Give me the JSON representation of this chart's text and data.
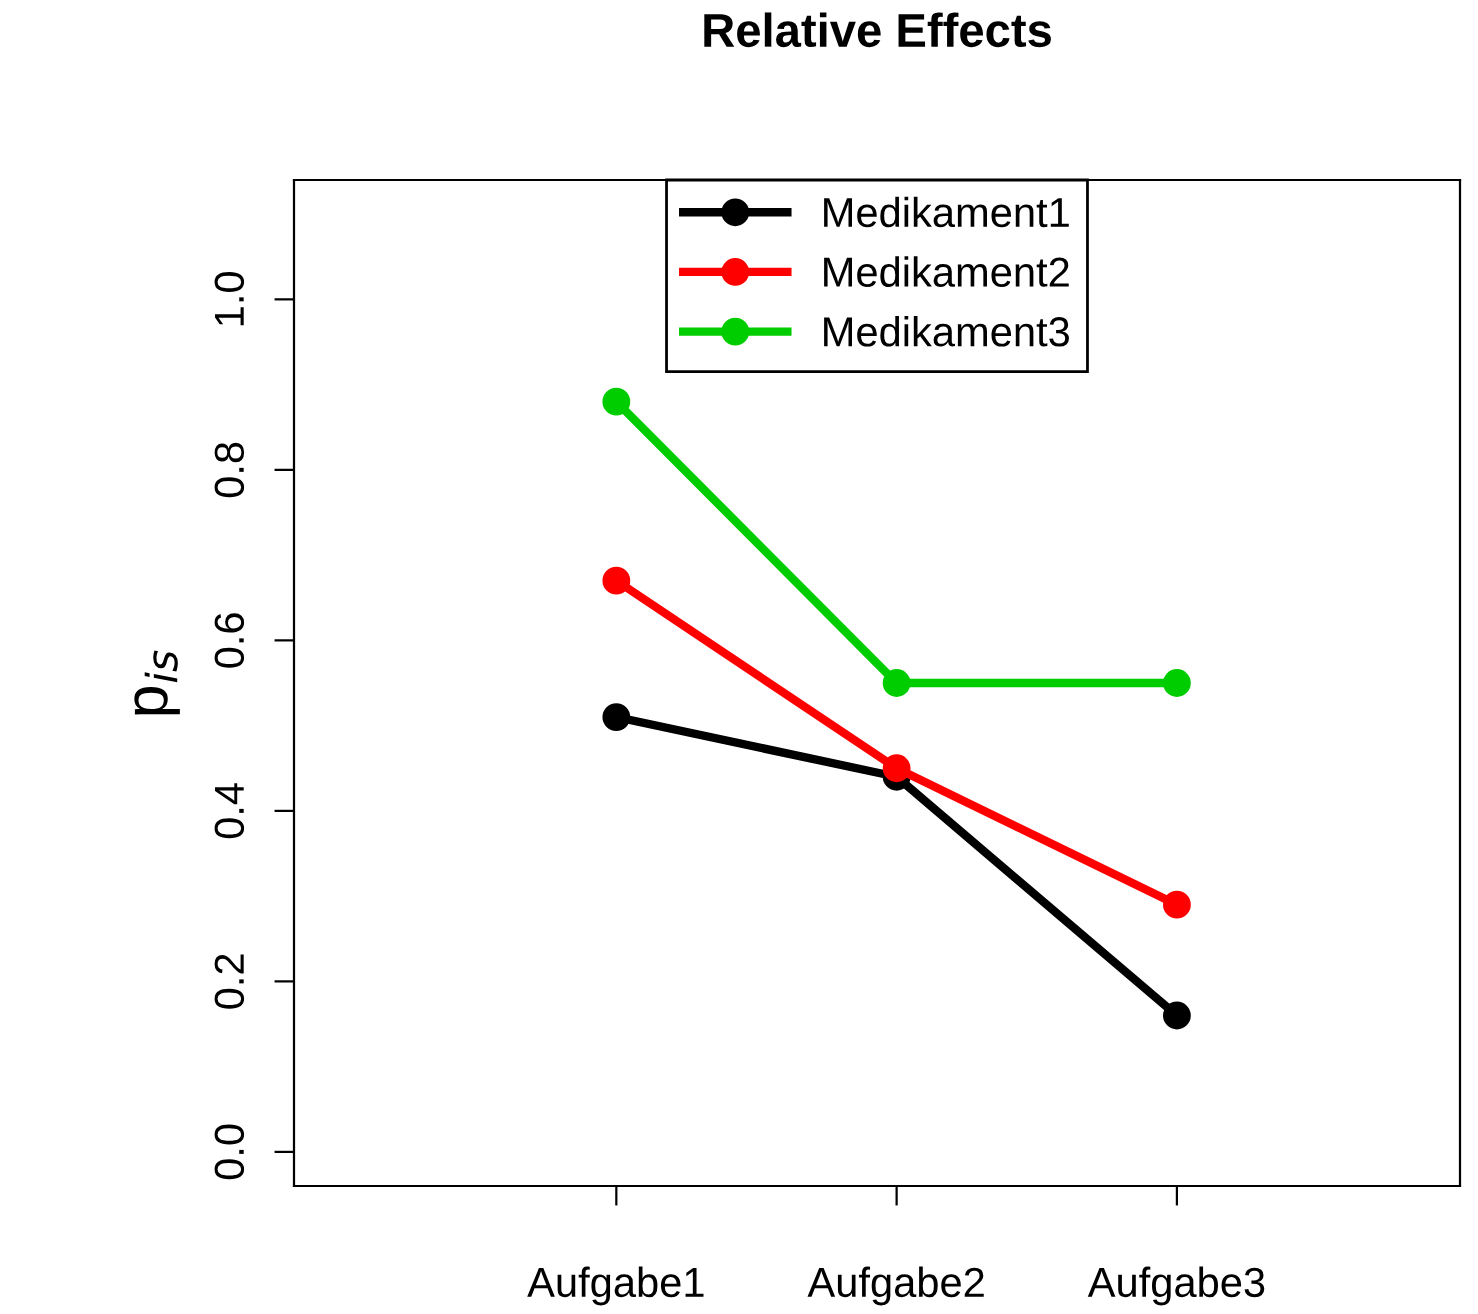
{
  "chart_data": {
    "type": "line",
    "title": "Relative Effects",
    "ylabel": "p$_{is}$",
    "categories": [
      "Aufgabe1",
      "Aufgabe2",
      "Aufgabe3"
    ],
    "series": [
      {
        "name": "Medikament1",
        "color": "#000000",
        "values": [
          0.51,
          0.44,
          0.16
        ]
      },
      {
        "name": "Medikament2",
        "color": "#ff0000",
        "values": [
          0.67,
          0.45,
          0.29
        ]
      },
      {
        "name": "Medikament3",
        "color": "#00cd00",
        "values": [
          0.88,
          0.55,
          0.55
        ]
      }
    ],
    "ylim": [
      -0.04,
      1.14
    ],
    "yticks": [
      {
        "value": 0,
        "label": "0.0"
      },
      0.2,
      0.4,
      0.6,
      0.8,
      {
        "value": 1,
        "label": "1.0"
      }
    ],
    "legend": "top",
    "marker": "circle",
    "line_style": "solid",
    "grid": false
  }
}
